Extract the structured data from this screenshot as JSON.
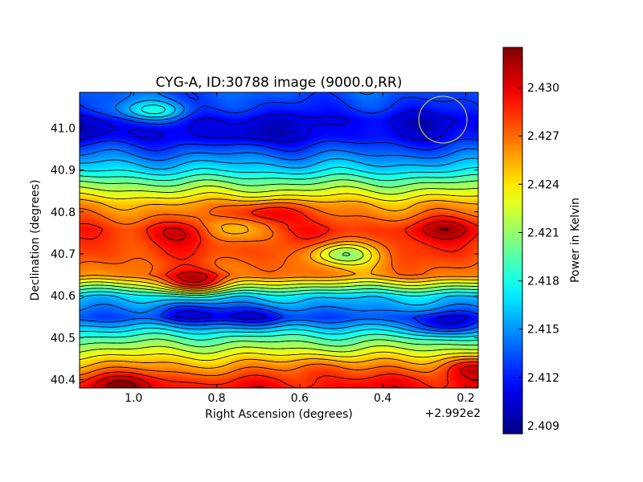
{
  "chart_data": {
    "type": "heatmap",
    "title": "CYG-A, ID:30788 image (9000.0,RR)",
    "xlabel": "Right Ascension (degrees)",
    "ylabel": "Declination (degrees)",
    "x_offset_label": "+2.992e2",
    "x_offset": 299.2,
    "xlim": [
      1.13,
      0.17
    ],
    "ylim": [
      40.38,
      41.085
    ],
    "x_ticks": [
      {
        "value": 1.0,
        "label": "1.0"
      },
      {
        "value": 0.8,
        "label": "0.8"
      },
      {
        "value": 0.6,
        "label": "0.6"
      },
      {
        "value": 0.4,
        "label": "0.4"
      },
      {
        "value": 0.2,
        "label": "0.2"
      }
    ],
    "y_ticks": [
      {
        "value": 40.4,
        "label": "40.4"
      },
      {
        "value": 40.5,
        "label": "40.5"
      },
      {
        "value": 40.6,
        "label": "40.6"
      },
      {
        "value": 40.7,
        "label": "40.7"
      },
      {
        "value": 40.8,
        "label": "40.8"
      },
      {
        "value": 40.9,
        "label": "40.9"
      },
      {
        "value": 41.0,
        "label": "41.0"
      }
    ],
    "colorbar": {
      "label": "Power in Kelvin",
      "colormap": "jet",
      "range": [
        2.4085,
        2.4325
      ],
      "ticks": [
        {
          "value": 2.409,
          "label": "2.409"
        },
        {
          "value": 2.412,
          "label": "2.412"
        },
        {
          "value": 2.415,
          "label": "2.415"
        },
        {
          "value": 2.418,
          "label": "2.418"
        },
        {
          "value": 2.421,
          "label": "2.421"
        },
        {
          "value": 2.424,
          "label": "2.424"
        },
        {
          "value": 2.427,
          "label": "2.427"
        },
        {
          "value": 2.43,
          "label": "2.430"
        }
      ]
    },
    "contour_color": "#000000",
    "beam_marker": {
      "ra": 0.255,
      "dec": 41.02,
      "color": "#c8c832"
    },
    "field_features": [
      {
        "kind": "low",
        "ra": 0.72,
        "dec": 40.99,
        "value": 2.4095
      },
      {
        "kind": "low",
        "ra": 0.3,
        "dec": 41.01,
        "value": 2.4105
      },
      {
        "kind": "low",
        "ra": 1.1,
        "dec": 41.0,
        "value": 2.4095
      },
      {
        "kind": "high",
        "ra": 0.95,
        "dec": 41.04,
        "value": 2.418
      },
      {
        "kind": "high",
        "ra": 0.68,
        "dec": 40.8,
        "value": 2.4305
      },
      {
        "kind": "high",
        "ra": 0.25,
        "dec": 40.76,
        "value": 2.431
      },
      {
        "kind": "high",
        "ra": 0.88,
        "dec": 40.75,
        "value": 2.4305
      },
      {
        "kind": "high",
        "ra": 0.85,
        "dec": 40.63,
        "value": 2.4295
      },
      {
        "kind": "low",
        "ra": 0.77,
        "dec": 40.76,
        "value": 2.4245
      },
      {
        "kind": "low",
        "ra": 0.5,
        "dec": 40.7,
        "value": 2.421
      },
      {
        "kind": "low",
        "ra": 0.87,
        "dec": 40.56,
        "value": 2.411
      },
      {
        "kind": "low",
        "ra": 0.7,
        "dec": 40.55,
        "value": 2.4105
      },
      {
        "kind": "low",
        "ra": 0.26,
        "dec": 40.53,
        "value": 2.4115
      },
      {
        "kind": "high",
        "ra": 1.03,
        "dec": 40.39,
        "value": 2.4315
      },
      {
        "kind": "high",
        "ra": 0.18,
        "dec": 40.43,
        "value": 2.4305
      },
      {
        "kind": "high",
        "ra": 0.55,
        "dec": 40.43,
        "value": 2.428
      },
      {
        "kind": "high",
        "ra": 0.35,
        "dec": 40.4,
        "value": 2.429
      }
    ]
  }
}
